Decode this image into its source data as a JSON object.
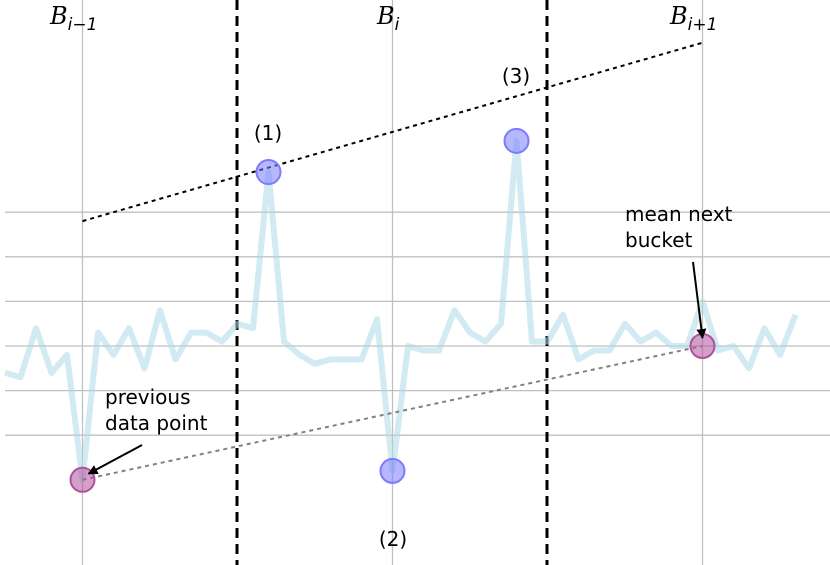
{
  "chart_data": {
    "type": "line",
    "grid": true,
    "series_color": "#add8e6",
    "highlight_color": "#7b7bff",
    "anchor_color": "#b0509c",
    "buckets": [
      {
        "label": "B",
        "sub": "i−1"
      },
      {
        "label": "B",
        "sub": "i"
      },
      {
        "label": "B",
        "sub": "i+1"
      }
    ],
    "series": [
      {
        "values": [
          -0.6,
          -0.7,
          0.4,
          -0.6,
          -0.2,
          -3.0,
          0.3,
          -0.2,
          0.4,
          -0.5,
          0.8,
          -0.3,
          0.3,
          0.3,
          0.1,
          0.5,
          0.4,
          3.9,
          0.1,
          -0.2,
          -0.4,
          -0.3,
          -0.3,
          -0.3,
          0.6,
          -2.8,
          0.0,
          -0.1,
          -0.1,
          0.8,
          0.3,
          0.1,
          0.5,
          4.6,
          0.1,
          0.1,
          0.7,
          -0.3,
          -0.1,
          -0.1,
          0.5,
          0.1,
          0.3,
          0.0,
          0.0,
          1.0,
          -0.1,
          0.0,
          -0.5,
          0.4,
          -0.2,
          0.7
        ]
      }
    ],
    "selected_points": [
      {
        "label": "(1)",
        "index": 17,
        "value": 3.9
      },
      {
        "label": "(2)",
        "index": 25,
        "value": -2.8
      },
      {
        "label": "(3)",
        "index": 33,
        "value": 4.6
      }
    ],
    "annotations": {
      "previous": {
        "text_lines": [
          "previous",
          "data point"
        ],
        "index": 5,
        "value": -3.0
      },
      "next": {
        "text_lines": [
          "mean next",
          "bucket"
        ],
        "index": 45,
        "value": 0.0
      }
    }
  }
}
